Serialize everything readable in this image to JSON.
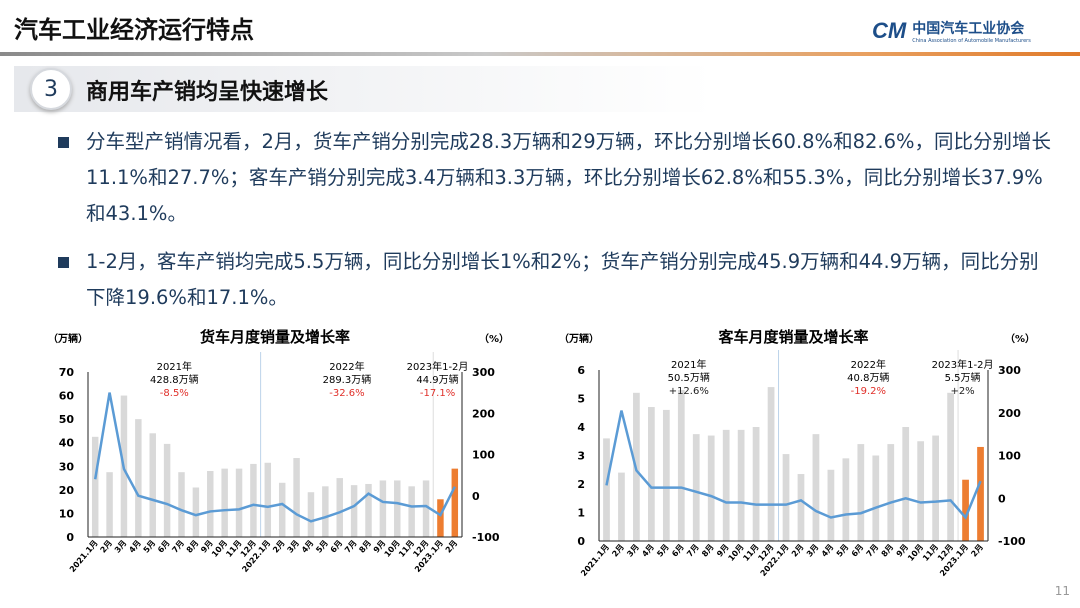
{
  "header": {
    "title": "汽车工业经济运行特点",
    "logo_cn": "中国汽车工业协会",
    "logo_en": "China Association of Automobile Manufacturers",
    "logo_mark": "CAAM"
  },
  "section": {
    "number": "3",
    "title": "商用车产销均呈快速增长"
  },
  "bullets": [
    "分车型产销情况看，2月，货车产销分别完成28.3万辆和29万辆，环比分别增长60.8%和82.6%，同比分别增长11.1%和27.7%；客车产销分别完成3.4万辆和3.3万辆，环比分别增长62.8%和55.3%，同比分别增长37.9%和43.1%。",
    "1-2月，客车产销均完成5.5万辆，同比分别增长1%和2%；货车产销分别完成45.9万辆和44.9万辆，同比分别下降19.6%和17.1%。"
  ],
  "page_number": "11",
  "colors": {
    "bar": "#d9d9d9",
    "bar_highlight": "#ed7d31",
    "line": "#5b9bd5",
    "neg": "#e0302a"
  },
  "chart_data": [
    {
      "type": "bar+line",
      "title": "货车月度销量及增长率",
      "ylabel": "（万辆）",
      "y2label": "（%）",
      "ylim": [
        0,
        70
      ],
      "yticks": [
        0,
        10,
        20,
        30,
        40,
        50,
        60,
        70
      ],
      "y2lim": [
        -100,
        300
      ],
      "y2ticks": [
        -100,
        0,
        100,
        200,
        300
      ],
      "categories": [
        "2021.1月",
        "2月",
        "3月",
        "4月",
        "5月",
        "6月",
        "7月",
        "8月",
        "9月",
        "10月",
        "11月",
        "12月",
        "2022.1月",
        "2月",
        "3月",
        "4月",
        "5月",
        "6月",
        "7月",
        "8月",
        "9月",
        "10月",
        "11月",
        "12月",
        "2023.1月",
        "2月"
      ],
      "series": [
        {
          "name": "销量",
          "axis": "left",
          "values": [
            42.5,
            27.5,
            60,
            50,
            44,
            39.5,
            27.5,
            21,
            28,
            29,
            29,
            31,
            31.5,
            23,
            33.5,
            19,
            21.5,
            25,
            22,
            22.5,
            24,
            24,
            21.5,
            24,
            16,
            29
          ]
        },
        {
          "name": "增长率",
          "axis": "right",
          "values": [
            40,
            250,
            65,
            0,
            -10,
            -20,
            -35,
            -47,
            -38,
            -35,
            -33,
            -22,
            -27,
            -20,
            -45,
            -62,
            -52,
            -40,
            -25,
            5,
            -15,
            -18,
            -26,
            -25,
            -47,
            22
          ]
        }
      ],
      "annotations": [
        {
          "year": "2021年",
          "total": "428.8万辆",
          "growth": "-8.5%",
          "neg": true
        },
        {
          "year": "2022年",
          "total": "289.3万辆",
          "growth": "-32.6%",
          "neg": true
        },
        {
          "year": "2023年1-2月",
          "total": "44.9万辆",
          "growth": "-17.1%",
          "neg": true
        }
      ]
    },
    {
      "type": "bar+line",
      "title": "客车月度销量及增长率",
      "ylabel": "（万辆）",
      "y2label": "（%）",
      "ylim": [
        0,
        6
      ],
      "yticks": [
        0,
        1,
        2,
        3,
        4,
        5,
        6
      ],
      "y2lim": [
        -100,
        300
      ],
      "y2ticks": [
        -100,
        0,
        100,
        200,
        300
      ],
      "categories": [
        "2021.1月",
        "2月",
        "3月",
        "4月",
        "5月",
        "6月",
        "7月",
        "8月",
        "9月",
        "10月",
        "11月",
        "12月",
        "2022.1月",
        "2月",
        "3月",
        "4月",
        "5月",
        "6月",
        "7月",
        "8月",
        "9月",
        "10月",
        "11月",
        "12月",
        "2023.1月",
        "2月"
      ],
      "series": [
        {
          "name": "销量",
          "axis": "left",
          "values": [
            3.6,
            2.4,
            5.2,
            4.7,
            4.6,
            5.3,
            3.75,
            3.7,
            3.9,
            3.9,
            4.0,
            5.4,
            3.05,
            2.35,
            3.75,
            2.5,
            2.9,
            3.4,
            3.0,
            3.4,
            4.0,
            3.5,
            3.7,
            5.2,
            2.15,
            3.3
          ]
        },
        {
          "name": "增长率",
          "axis": "right",
          "values": [
            30,
            205,
            65,
            25,
            25,
            25,
            15,
            5,
            -10,
            -10,
            -15,
            -15,
            -15,
            -5,
            -30,
            -45,
            -38,
            -35,
            -22,
            -10,
            0,
            -10,
            -8,
            -5,
            -45,
            40
          ]
        }
      ],
      "annotations": [
        {
          "year": "2021年",
          "total": "50.5万辆",
          "growth": "+12.6%",
          "neg": false
        },
        {
          "year": "2022年",
          "total": "40.8万辆",
          "growth": "-19.2%",
          "neg": true
        },
        {
          "year": "2023年1-2月",
          "total": "5.5万辆",
          "growth": "+2%",
          "neg": false
        }
      ]
    }
  ]
}
